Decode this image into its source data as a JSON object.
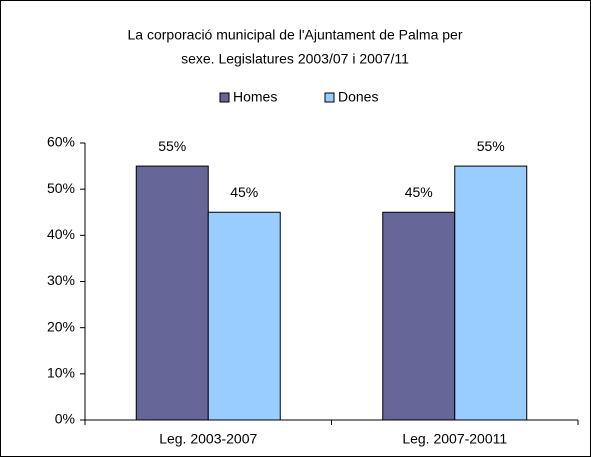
{
  "chart_data": {
    "type": "bar",
    "title": [
      "La corporació municipal de l'Ajuntament de Palma per",
      "sexe. Legislatures 2003/07 i 2007/11"
    ],
    "categories": [
      "Leg. 2003-2007",
      "Leg. 2007-20011"
    ],
    "series": [
      {
        "name": "Homes",
        "color": "#666699",
        "values": [
          55,
          45
        ],
        "value_labels": [
          "55%",
          "45%"
        ]
      },
      {
        "name": "Dones",
        "color": "#99ccff",
        "values": [
          45,
          55
        ],
        "value_labels": [
          "45%",
          "55%"
        ]
      }
    ],
    "ylim": [
      0,
      60
    ],
    "yticks": [
      {
        "value": 0,
        "label": "0%"
      },
      {
        "value": 10,
        "label": "10%"
      },
      {
        "value": 20,
        "label": "20%"
      },
      {
        "value": 30,
        "label": "30%"
      },
      {
        "value": 40,
        "label": "40%"
      },
      {
        "value": 50,
        "label": "50%"
      },
      {
        "value": 60,
        "label": "60%"
      }
    ],
    "legend": "top",
    "grid": false
  }
}
